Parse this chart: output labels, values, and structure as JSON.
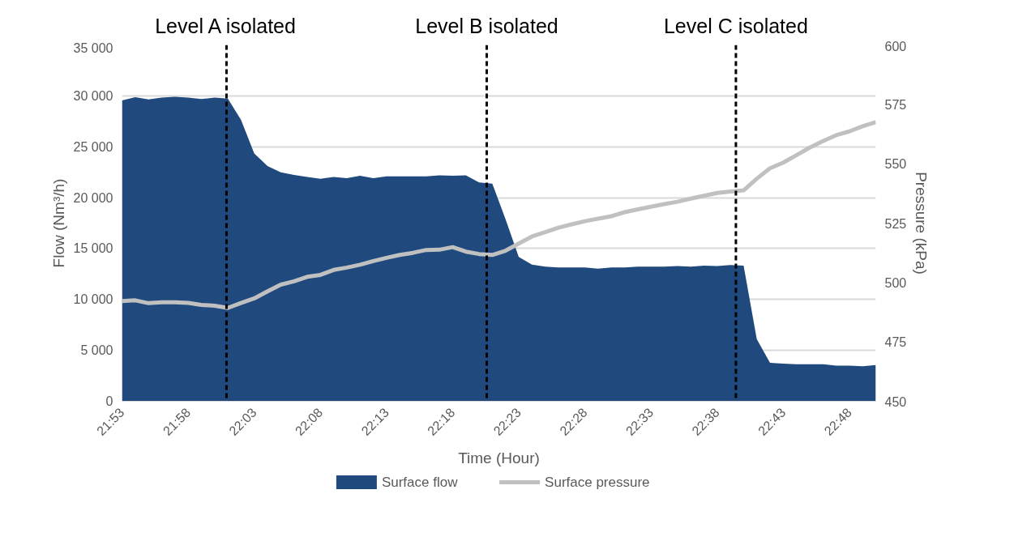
{
  "chart_data": {
    "type": "area",
    "xlabel": "Time (Hour)",
    "ylabel": "Flow (Nm³/h)",
    "y2label": "Pressure (kPa)",
    "x": [
      21.8833,
      21.9,
      21.9167,
      21.9333,
      21.95,
      21.9667,
      21.9833,
      22.0,
      22.0167,
      22.0333,
      22.05,
      22.0667,
      22.0833,
      22.1,
      22.1167,
      22.1333,
      22.15,
      22.1667,
      22.1833,
      22.2,
      22.2167,
      22.2333,
      22.25,
      22.2667,
      22.2833,
      22.3,
      22.3167,
      22.3333,
      22.35,
      22.3667,
      22.3833,
      22.4,
      22.4167,
      22.4333,
      22.45,
      22.4667,
      22.4833,
      22.5,
      22.5167,
      22.5333,
      22.55,
      22.5667,
      22.5833,
      22.6,
      22.6167,
      22.6333,
      22.65,
      22.6667,
      22.6833,
      22.7,
      22.7167,
      22.7333,
      22.75,
      22.7667,
      22.7833,
      22.8,
      22.8167,
      22.8333
    ],
    "series": [
      {
        "name": "Surface flow",
        "color": "#204a7e",
        "values": [
          29550,
          29870,
          29660,
          29820,
          29900,
          29820,
          29690,
          29820,
          29740,
          27650,
          24340,
          23100,
          22490,
          22230,
          22040,
          21860,
          22040,
          21910,
          22150,
          21910,
          22090,
          22090,
          22090,
          22090,
          22200,
          22150,
          22200,
          21490,
          21380,
          17880,
          14180,
          13420,
          13220,
          13140,
          13140,
          13140,
          13030,
          13140,
          13140,
          13220,
          13220,
          13220,
          13280,
          13220,
          13330,
          13280,
          13390,
          13330,
          6110,
          3780,
          3700,
          3640,
          3640,
          3640,
          3500,
          3500,
          3450,
          3560
        ]
      },
      {
        "name": "Surface pressure",
        "type": "line",
        "axis": "y2",
        "color": "#c0c0c0",
        "values": [
          492.2,
          492.5,
          491.3,
          491.7,
          491.7,
          491.4,
          490.6,
          490.2,
          489.3,
          491.4,
          493.3,
          496.3,
          499.1,
          500.5,
          502.4,
          503.2,
          505.3,
          506.3,
          507.5,
          509.0,
          510.4,
          511.6,
          512.5,
          513.7,
          513.8,
          514.9,
          513.0,
          512.0,
          511.6,
          513.4,
          516.4,
          519.4,
          521.2,
          523.1,
          524.5,
          525.8,
          526.9,
          527.9,
          529.6,
          530.8,
          531.9,
          533.0,
          534.0,
          535.3,
          536.5,
          537.7,
          538.3,
          538.8,
          543.7,
          548.1,
          550.5,
          553.6,
          556.8,
          559.5,
          562.0,
          563.6,
          565.8,
          567.5
        ]
      }
    ],
    "xlim": [
      21.8833,
      22.8333
    ],
    "xticks": [
      {
        "value": 21.8833,
        "label": "21:53"
      },
      {
        "value": 21.9667,
        "label": "21:58"
      },
      {
        "value": 22.05,
        "label": "22:03"
      },
      {
        "value": 22.1333,
        "label": "22:08"
      },
      {
        "value": 22.2167,
        "label": "22:13"
      },
      {
        "value": 22.3,
        "label": "22:18"
      },
      {
        "value": 22.3833,
        "label": "22:23"
      },
      {
        "value": 22.4667,
        "label": "22:28"
      },
      {
        "value": 22.55,
        "label": "22:33"
      },
      {
        "value": 22.6333,
        "label": "22:38"
      },
      {
        "value": 22.7167,
        "label": "22:43"
      },
      {
        "value": 22.8,
        "label": "22:48"
      }
    ],
    "ylim": [
      0,
      35000
    ],
    "yticks": [
      0,
      {
        "value": 5000,
        "label": "5 000"
      },
      {
        "value": 10000,
        "label": "10 000"
      },
      {
        "value": 15000,
        "label": "15 000"
      },
      {
        "value": 20000,
        "label": "20 000"
      },
      {
        "value": 25000,
        "label": "25 000"
      },
      {
        "value": 30000,
        "label": "30 000"
      },
      {
        "value": 35000,
        "label": "35 000"
      }
    ],
    "y2lim": [
      450,
      600
    ],
    "y2ticks": [
      450,
      475,
      500,
      525,
      550,
      575,
      600
    ],
    "ref_lines": [
      {
        "axis": "x",
        "value": 22.015,
        "label": "Level A isolated",
        "color": "#000000",
        "line_style": "dashed"
      },
      {
        "axis": "x",
        "value": 22.343,
        "label": "Level B isolated",
        "color": "#000000",
        "line_style": "dashed"
      },
      {
        "axis": "x",
        "value": 22.657,
        "label": "Level C isolated",
        "color": "#000000",
        "line_style": "dashed"
      }
    ],
    "grid": "y",
    "legend": "bottom"
  }
}
